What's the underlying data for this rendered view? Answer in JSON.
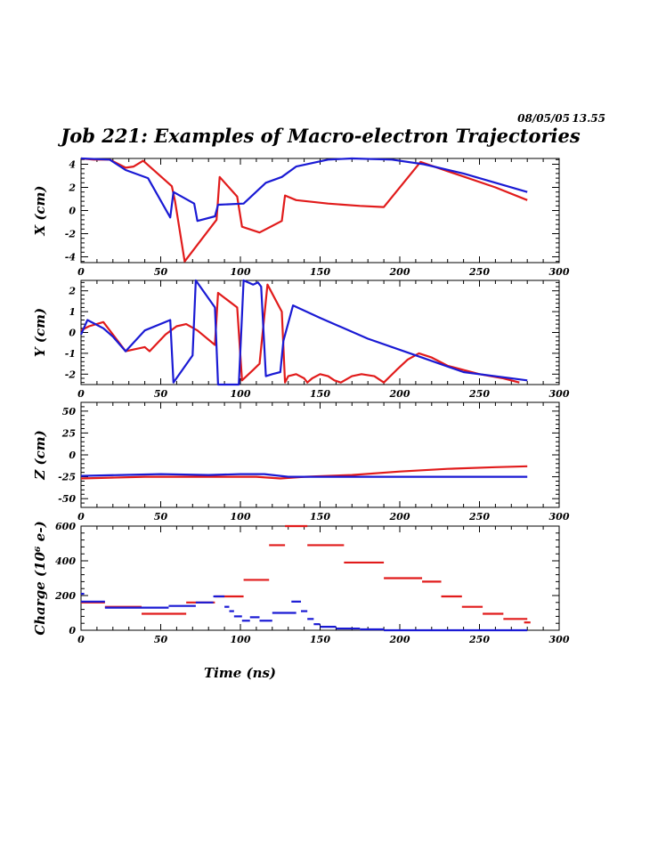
{
  "header": {
    "date": "08/05/05",
    "time": "13.55",
    "title": "Job 221: Examples of Macro-electron Trajectories"
  },
  "colors": {
    "red": "#e11b1b",
    "blue": "#1a1ad4",
    "axis": "#000000"
  },
  "chart_data": [
    {
      "type": "line",
      "ylabel": "X (cm)",
      "xlim": [
        0,
        300
      ],
      "ylim": [
        -4.5,
        4.5
      ],
      "xticks": [
        0,
        50,
        100,
        150,
        200,
        250,
        300
      ],
      "yticks": [
        -4,
        -2,
        0,
        2,
        4
      ],
      "series": [
        {
          "color": "red",
          "points": [
            [
              0,
              4.5
            ],
            [
              8,
              4.4
            ],
            [
              18,
              4.4
            ],
            [
              28,
              3.7
            ],
            [
              33,
              3.8
            ],
            [
              39,
              4.3
            ],
            [
              57,
              2.1
            ],
            [
              59,
              0.8
            ],
            [
              65,
              -4.4
            ],
            [
              85,
              -0.8
            ],
            [
              87,
              2.9
            ],
            [
              98,
              1.2
            ],
            [
              101,
              -1.4
            ],
            [
              112,
              -1.9
            ],
            [
              126,
              -0.9
            ],
            [
              128,
              1.3
            ],
            [
              135,
              0.9
            ],
            [
              155,
              0.6
            ],
            [
              175,
              0.4
            ],
            [
              190,
              0.3
            ],
            [
              213,
              4.2
            ],
            [
              230,
              3.4
            ],
            [
              260,
              2.0
            ],
            [
              280,
              0.9
            ]
          ]
        },
        {
          "color": "blue",
          "points": [
            [
              0,
              4.5
            ],
            [
              18,
              4.4
            ],
            [
              28,
              3.5
            ],
            [
              42,
              2.8
            ],
            [
              56,
              -0.6
            ],
            [
              58,
              1.6
            ],
            [
              71,
              0.6
            ],
            [
              73,
              -0.9
            ],
            [
              84,
              -0.5
            ],
            [
              86,
              0.5
            ],
            [
              102,
              0.6
            ],
            [
              116,
              2.4
            ],
            [
              126,
              2.9
            ],
            [
              135,
              3.8
            ],
            [
              155,
              4.4
            ],
            [
              170,
              4.5
            ],
            [
              195,
              4.4
            ],
            [
              215,
              4.0
            ],
            [
              240,
              3.2
            ],
            [
              280,
              1.6
            ]
          ]
        }
      ]
    },
    {
      "type": "line",
      "ylabel": "Y (cm)",
      "xlim": [
        0,
        300
      ],
      "ylim": [
        -2.5,
        2.5
      ],
      "xticks": [
        0,
        50,
        100,
        150,
        200,
        250,
        300
      ],
      "yticks": [
        -2,
        -1,
        0,
        1,
        2
      ],
      "series": [
        {
          "color": "red",
          "points": [
            [
              0,
              0.1
            ],
            [
              5,
              0.3
            ],
            [
              14,
              0.5
            ],
            [
              20,
              -0.1
            ],
            [
              28,
              -0.9
            ],
            [
              34,
              -0.8
            ],
            [
              40,
              -0.7
            ],
            [
              43,
              -0.9
            ],
            [
              53,
              -0.1
            ],
            [
              60,
              0.3
            ],
            [
              66,
              0.4
            ],
            [
              73,
              0.1
            ],
            [
              84,
              -0.6
            ],
            [
              86,
              1.9
            ],
            [
              98,
              1.2
            ],
            [
              101,
              -2.3
            ],
            [
              108,
              -1.8
            ],
            [
              112,
              -1.5
            ],
            [
              117,
              2.3
            ],
            [
              126,
              1.0
            ],
            [
              128,
              -2.4
            ],
            [
              130,
              -2.1
            ],
            [
              135,
              -2.0
            ],
            [
              140,
              -2.2
            ],
            [
              142,
              -2.4
            ],
            [
              145,
              -2.2
            ],
            [
              150,
              -2.0
            ],
            [
              155,
              -2.1
            ],
            [
              159,
              -2.3
            ],
            [
              163,
              -2.4
            ],
            [
              170,
              -2.1
            ],
            [
              176,
              -2.0
            ],
            [
              184,
              -2.1
            ],
            [
              190,
              -2.4
            ],
            [
              198,
              -1.8
            ],
            [
              205,
              -1.3
            ],
            [
              212,
              -1.0
            ],
            [
              220,
              -1.2
            ],
            [
              230,
              -1.6
            ],
            [
              250,
              -2.0
            ],
            [
              265,
              -2.2
            ],
            [
              275,
              -2.4
            ]
          ]
        },
        {
          "color": "blue",
          "points": [
            [
              0,
              -0.1
            ],
            [
              4,
              0.6
            ],
            [
              14,
              0.2
            ],
            [
              20,
              -0.2
            ],
            [
              28,
              -0.9
            ],
            [
              40,
              0.1
            ],
            [
              56,
              0.6
            ],
            [
              58,
              -2.4
            ],
            [
              70,
              -1.1
            ],
            [
              72,
              2.5
            ],
            [
              84,
              1.2
            ],
            [
              86,
              -2.5
            ],
            [
              99,
              -2.5
            ],
            [
              102,
              2.5
            ],
            [
              108,
              2.3
            ],
            [
              111,
              2.4
            ],
            [
              113,
              2.2
            ],
            [
              116,
              -2.1
            ],
            [
              120,
              -2.0
            ],
            [
              125,
              -1.9
            ],
            [
              127,
              -0.4
            ],
            [
              133,
              1.3
            ],
            [
              150,
              0.7
            ],
            [
              180,
              -0.3
            ],
            [
              210,
              -1.1
            ],
            [
              240,
              -1.9
            ],
            [
              280,
              -2.3
            ]
          ]
        }
      ]
    },
    {
      "type": "line",
      "ylabel": "Z (cm)",
      "xlim": [
        0,
        300
      ],
      "ylim": [
        -60,
        60
      ],
      "xticks": [
        0,
        50,
        100,
        150,
        200,
        250,
        300
      ],
      "yticks": [
        -50,
        -25,
        0,
        25,
        50
      ],
      "series": [
        {
          "color": "red",
          "points": [
            [
              0,
              -27
            ],
            [
              40,
              -25
            ],
            [
              80,
              -25
            ],
            [
              110,
              -25
            ],
            [
              125,
              -27
            ],
            [
              140,
              -25
            ],
            [
              170,
              -23
            ],
            [
              200,
              -19
            ],
            [
              230,
              -16
            ],
            [
              260,
              -14
            ],
            [
              280,
              -13
            ]
          ]
        },
        {
          "color": "blue",
          "points": [
            [
              0,
              -24
            ],
            [
              25,
              -23
            ],
            [
              50,
              -22
            ],
            [
              80,
              -23
            ],
            [
              100,
              -22
            ],
            [
              115,
              -22
            ],
            [
              130,
              -25
            ],
            [
              150,
              -25
            ],
            [
              200,
              -25
            ],
            [
              280,
              -25
            ]
          ]
        }
      ]
    },
    {
      "type": "step",
      "ylabel": "Charge (10⁶ e-)",
      "xlabel": "Time (ns)",
      "xlim": [
        0,
        300
      ],
      "ylim": [
        0,
        600
      ],
      "xticks": [
        0,
        50,
        100,
        150,
        200,
        250,
        300
      ],
      "yticks": [
        0,
        200,
        400,
        600
      ],
      "series": [
        {
          "color": "red",
          "segments": [
            [
              0,
              15,
              160
            ],
            [
              15,
              38,
              135
            ],
            [
              38,
              66,
              95
            ],
            [
              66,
              84,
              160
            ],
            [
              84,
              102,
              195
            ],
            [
              102,
              118,
              290
            ],
            [
              118,
              128,
              490
            ],
            [
              128,
              142,
              600
            ],
            [
              142,
              165,
              490
            ],
            [
              165,
              190,
              390
            ],
            [
              190,
              214,
              300
            ],
            [
              214,
              226,
              280
            ],
            [
              226,
              239,
              195
            ],
            [
              239,
              252,
              135
            ],
            [
              252,
              265,
              95
            ],
            [
              265,
              280,
              65
            ],
            [
              278,
              282,
              45
            ]
          ]
        },
        {
          "color": "blue",
          "segments": [
            [
              0,
              2,
              210
            ],
            [
              0,
              15,
              165
            ],
            [
              15,
              55,
              130
            ],
            [
              55,
              72,
              140
            ],
            [
              72,
              83,
              160
            ],
            [
              83,
              90,
              195
            ],
            [
              90,
              93,
              135
            ],
            [
              93,
              96,
              110
            ],
            [
              96,
              101,
              80
            ],
            [
              101,
              106,
              55
            ],
            [
              106,
              112,
              75
            ],
            [
              112,
              120,
              55
            ],
            [
              120,
              135,
              100
            ],
            [
              132,
              138,
              165
            ],
            [
              138,
              142,
              110
            ],
            [
              142,
              146,
              65
            ],
            [
              146,
              150,
              35
            ],
            [
              150,
              160,
              20
            ],
            [
              160,
              175,
              10
            ],
            [
              175,
              190,
              5
            ],
            [
              190,
              280,
              0
            ]
          ]
        }
      ]
    }
  ]
}
